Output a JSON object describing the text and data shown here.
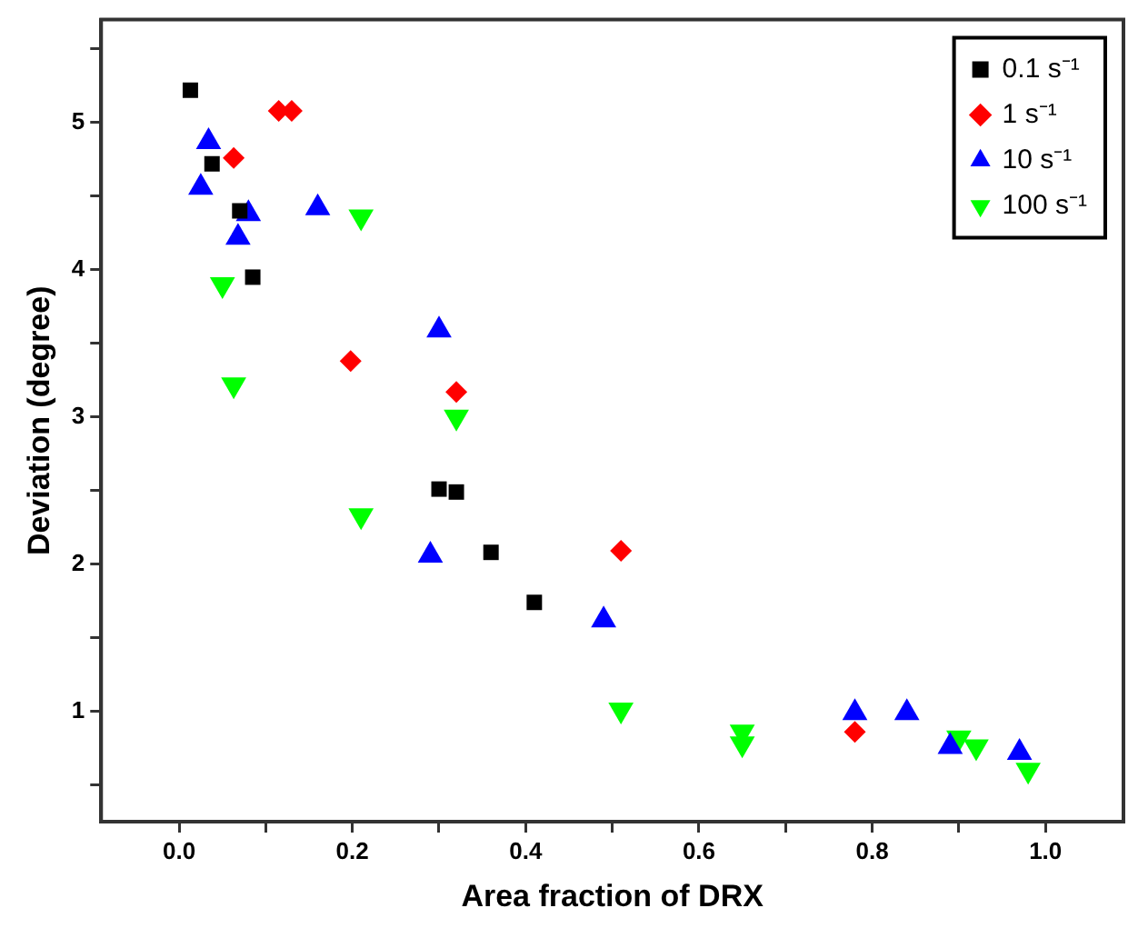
{
  "chart_data": {
    "type": "scatter",
    "xlabel": "Area fraction of DRX",
    "ylabel": "Deviation (degree)",
    "xlim": [
      -0.09,
      1.09
    ],
    "ylim": [
      0.25,
      5.7
    ],
    "xticks": [
      {
        "value": 0,
        "label": "0.0"
      },
      {
        "value": 0.1,
        "label": null
      },
      {
        "value": 0.2,
        "label": "0.2"
      },
      {
        "value": 0.3,
        "label": null
      },
      {
        "value": 0.4,
        "label": "0.4"
      },
      {
        "value": 0.5,
        "label": null
      },
      {
        "value": 0.6,
        "label": "0.6"
      },
      {
        "value": 0.7,
        "label": null
      },
      {
        "value": 0.8,
        "label": "0.8"
      },
      {
        "value": 0.9,
        "label": null
      },
      {
        "value": 1,
        "label": "1.0"
      }
    ],
    "yticks": [
      {
        "value": 0.5,
        "label": null
      },
      1,
      {
        "value": 1.5,
        "label": null
      },
      2,
      {
        "value": 2.5,
        "label": null
      },
      3,
      {
        "value": 3.5,
        "label": null
      },
      4,
      {
        "value": 4.5,
        "label": null
      },
      5,
      {
        "value": 5.5,
        "label": null
      }
    ],
    "grid": false,
    "legend": "top right",
    "series": [
      {
        "name": "0.1 s⁻¹",
        "color": "#000000",
        "marker": "square",
        "x": [
          0.013,
          0.038,
          0.07,
          0.085,
          0.3,
          0.32,
          0.36,
          0.41
        ],
        "values": [
          5.22,
          4.72,
          4.4,
          3.95,
          2.51,
          2.49,
          2.08,
          1.74
        ]
      },
      {
        "name": "1 s⁻¹",
        "color": "#ff0000",
        "marker": "diamond",
        "x": [
          0.115,
          0.13,
          0.063,
          0.198,
          0.32,
          0.51,
          0.78
        ],
        "values": [
          5.08,
          5.08,
          4.76,
          3.38,
          3.17,
          2.09,
          0.86
        ]
      },
      {
        "name": "10 s⁻¹",
        "color": "#0000ff",
        "marker": "triangle",
        "x": [
          0.034,
          0.025,
          0.08,
          0.068,
          0.16,
          0.3,
          0.29,
          0.49,
          0.78,
          0.84,
          0.89,
          0.97
        ],
        "values": [
          4.87,
          4.56,
          4.38,
          4.22,
          4.42,
          3.59,
          2.06,
          1.62,
          0.99,
          0.99,
          0.76,
          0.72
        ]
      },
      {
        "name": "100 s⁻¹",
        "color": "#00ff00",
        "marker": "triangle-down",
        "x": [
          0.21,
          0.05,
          0.063,
          0.32,
          0.21,
          0.51,
          0.65,
          0.65,
          0.9,
          0.92,
          0.98
        ],
        "values": [
          4.36,
          3.9,
          3.22,
          3.0,
          2.33,
          1.01,
          0.86,
          0.78,
          0.82,
          0.76,
          0.6
        ]
      }
    ]
  }
}
